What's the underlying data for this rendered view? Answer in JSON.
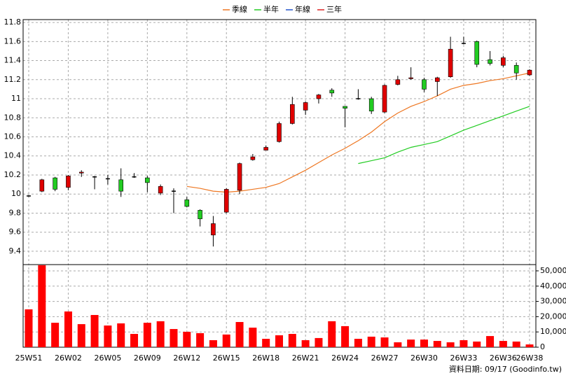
{
  "chart_data": {
    "type": "candlestick",
    "categories": [
      "25W51",
      null,
      null,
      "26W02",
      null,
      null,
      "26W05",
      null,
      null,
      "26W09",
      null,
      null,
      "26W12",
      null,
      null,
      "26W15",
      null,
      null,
      "26W18",
      null,
      null,
      "26W21",
      null,
      null,
      "26W24",
      null,
      null,
      "26W27",
      null,
      null,
      "26W30",
      null,
      null,
      "26W33",
      null,
      null,
      "26W36",
      null,
      "26W38"
    ],
    "open": [
      9.98,
      10.03,
      10.17,
      10.07,
      10.22,
      10.18,
      10.16,
      10.15,
      10.18,
      10.17,
      10.01,
      10.03,
      9.94,
      9.83,
      9.57,
      9.81,
      10.04,
      10.36,
      10.46,
      10.55,
      10.74,
      10.88,
      11.0,
      11.09,
      10.92,
      11.0,
      11.0,
      10.86,
      11.15,
      11.21,
      11.2,
      11.18,
      11.23,
      11.58,
      11.6,
      11.41,
      11.35,
      11.35,
      11.25
    ],
    "high": [
      9.99,
      10.16,
      10.18,
      10.2,
      10.25,
      10.19,
      10.2,
      10.27,
      10.22,
      10.19,
      10.1,
      10.06,
      9.97,
      9.84,
      9.77,
      10.06,
      10.33,
      10.42,
      10.51,
      10.76,
      11.02,
      10.97,
      11.05,
      11.11,
      10.92,
      11.1,
      11.02,
      11.15,
      11.24,
      11.33,
      11.22,
      11.23,
      11.65,
      11.65,
      11.61,
      11.5,
      11.45,
      11.38,
      11.31
    ],
    "low": [
      9.97,
      10.02,
      10.03,
      10.04,
      10.18,
      10.05,
      10.1,
      9.97,
      10.17,
      10.02,
      9.99,
      9.8,
      9.86,
      9.66,
      9.45,
      9.8,
      10.0,
      10.35,
      10.46,
      10.54,
      10.73,
      10.83,
      10.95,
      11.02,
      10.7,
      10.99,
      10.84,
      10.85,
      11.14,
      11.2,
      11.07,
      11.03,
      11.22,
      11.57,
      11.33,
      11.35,
      11.33,
      11.2,
      11.24
    ],
    "close": [
      9.98,
      10.15,
      10.05,
      10.19,
      10.23,
      10.18,
      10.16,
      10.03,
      10.18,
      10.12,
      10.08,
      10.03,
      9.87,
      9.74,
      9.69,
      10.05,
      10.32,
      10.39,
      10.49,
      10.74,
      10.94,
      10.96,
      11.04,
      11.06,
      10.9,
      11.0,
      10.87,
      11.14,
      11.2,
      11.22,
      11.1,
      11.22,
      11.52,
      11.58,
      11.36,
      11.37,
      11.43,
      11.27,
      11.3
    ],
    "up_color": "#e00000",
    "down_color": "#22cc22",
    "ylim": [
      9.26,
      11.83
    ],
    "yticks": [
      9.4,
      9.6,
      9.8,
      10,
      10.2,
      10.4,
      10.6,
      10.8,
      11,
      11.2,
      11.4,
      11.6,
      11.8
    ],
    "grid": true,
    "series": [
      {
        "name": "季線",
        "color": "#ee7722",
        "values": [
          null,
          null,
          null,
          null,
          null,
          null,
          null,
          null,
          null,
          null,
          null,
          null,
          10.08,
          10.06,
          10.03,
          10.02,
          10.03,
          10.05,
          10.07,
          10.11,
          10.18,
          10.25,
          10.33,
          10.41,
          10.48,
          10.56,
          10.65,
          10.76,
          10.85,
          10.92,
          10.97,
          11.03,
          11.1,
          11.14,
          11.16,
          11.19,
          11.21,
          11.24,
          11.27
        ]
      },
      {
        "name": "半年",
        "color": "#22cc22",
        "values": [
          null,
          null,
          null,
          null,
          null,
          null,
          null,
          null,
          null,
          null,
          null,
          null,
          null,
          null,
          null,
          null,
          null,
          null,
          null,
          null,
          null,
          null,
          null,
          null,
          null,
          10.32,
          10.35,
          10.38,
          10.44,
          10.49,
          10.52,
          10.55,
          10.61,
          10.67,
          10.72,
          10.77,
          10.82,
          10.87,
          10.92
        ]
      },
      {
        "name": "年線",
        "color": "#2255cc",
        "values": [
          null,
          null,
          null,
          null,
          null,
          null,
          null,
          null,
          null,
          null,
          null,
          null,
          null,
          null,
          null,
          null,
          null,
          null,
          null,
          null,
          null,
          null,
          null,
          null,
          null,
          null,
          null,
          null,
          null,
          null,
          null,
          null,
          null,
          null,
          null,
          null,
          null,
          null,
          null
        ]
      },
      {
        "name": "三年",
        "color": "#dd2222",
        "values": [
          null,
          null,
          null,
          null,
          null,
          null,
          null,
          null,
          null,
          null,
          null,
          null,
          null,
          null,
          null,
          null,
          null,
          null,
          null,
          null,
          null,
          null,
          null,
          null,
          null,
          null,
          null,
          null,
          null,
          null,
          null,
          null,
          null,
          null,
          null,
          null,
          null,
          null,
          null
        ]
      }
    ],
    "volume": {
      "color": "#ff0000",
      "values": [
        24800,
        53700,
        16000,
        23400,
        15100,
        21100,
        14200,
        15600,
        8700,
        16000,
        17000,
        11900,
        10100,
        9200,
        4600,
        8300,
        16500,
        12800,
        5500,
        7800,
        8700,
        4600,
        6000,
        17000,
        13800,
        5500,
        6900,
        6400,
        3200,
        5000,
        5000,
        4100,
        3200,
        4600,
        3700,
        7300,
        4100,
        3700,
        1800
      ],
      "ylim": [
        0,
        54100
      ],
      "yticks": [
        {
          "value": 0,
          "label": "0"
        },
        {
          "value": 10000,
          "label": "10,000"
        },
        {
          "value": 20000,
          "label": "20,000"
        },
        {
          "value": 30000,
          "label": "30,000"
        },
        {
          "value": 40000,
          "label": "40,000"
        },
        {
          "value": 50000,
          "label": "50,000"
        }
      ]
    },
    "source": "資料日期: 09/17  (Goodinfo.tw)"
  }
}
